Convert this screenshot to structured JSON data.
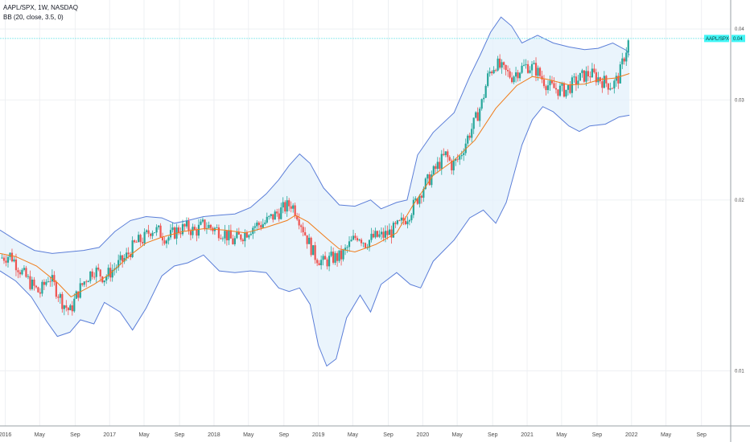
{
  "legend": {
    "symbol_line": "AAPL/SPX, 1W, NASDAQ",
    "indicator_line": "BB (20, close, 3.5, 0)"
  },
  "price_label": {
    "name": "AAPL/SPX",
    "value": "0.04"
  },
  "colors": {
    "band": "#5b7ed8",
    "band_fill": "#e3f0fb",
    "basis": "#f07c1a",
    "up": "#26a69a",
    "down": "#ef5350",
    "grid": "#eef0f3",
    "price_line": "#6fe3e8",
    "price_tag_bg": "#42f5f5",
    "axis_border": "#9aa0a6"
  },
  "chart_data": {
    "type": "line",
    "title": "AAPL/SPX, 1W, NASDAQ",
    "subtitle": "BB (20, close, 3.5, 0)",
    "xlim": [
      2015.95,
      2022.95
    ],
    "ylim": [
      0.008,
      0.045
    ],
    "x_ticks": [
      {
        "label": "2016",
        "t": 2016.0
      },
      {
        "label": "May",
        "t": 2016.33
      },
      {
        "label": "Sep",
        "t": 2016.67
      },
      {
        "label": "2017",
        "t": 2017.0
      },
      {
        "label": "May",
        "t": 2017.33
      },
      {
        "label": "Sep",
        "t": 2017.67
      },
      {
        "label": "2018",
        "t": 2018.0
      },
      {
        "label": "May",
        "t": 2018.33
      },
      {
        "label": "Sep",
        "t": 2018.67
      },
      {
        "label": "2019",
        "t": 2019.0
      },
      {
        "label": "May",
        "t": 2019.33
      },
      {
        "label": "Sep",
        "t": 2019.67
      },
      {
        "label": "2020",
        "t": 2020.0
      },
      {
        "label": "May",
        "t": 2020.33
      },
      {
        "label": "Sep",
        "t": 2020.67
      },
      {
        "label": "2021",
        "t": 2021.0
      },
      {
        "label": "May",
        "t": 2021.33
      },
      {
        "label": "Sep",
        "t": 2021.67
      },
      {
        "label": "2022",
        "t": 2022.0
      },
      {
        "label": "May",
        "t": 2022.33
      },
      {
        "label": "Sep",
        "t": 2022.67
      }
    ],
    "y_ticks": [
      {
        "label": "0.04",
        "v": 0.04
      },
      {
        "label": "0.03",
        "v": 0.03
      },
      {
        "label": "0.02",
        "v": 0.02
      },
      {
        "label": "0.01",
        "v": 0.01
      }
    ],
    "last_price": 0.0385,
    "series": [
      {
        "name": "basis",
        "points": [
          [
            2015.95,
            0.0161
          ],
          [
            2016.1,
            0.0159
          ],
          [
            2016.3,
            0.0153
          ],
          [
            2016.5,
            0.0143
          ],
          [
            2016.63,
            0.0135
          ],
          [
            2016.85,
            0.0142
          ],
          [
            2017.0,
            0.0148
          ],
          [
            2017.2,
            0.016
          ],
          [
            2017.35,
            0.0168
          ],
          [
            2017.5,
            0.0172
          ],
          [
            2017.7,
            0.0176
          ],
          [
            2017.9,
            0.0178
          ],
          [
            2018.1,
            0.0177
          ],
          [
            2018.3,
            0.0175
          ],
          [
            2018.5,
            0.0179
          ],
          [
            2018.7,
            0.0184
          ],
          [
            2018.78,
            0.0188
          ],
          [
            2018.9,
            0.0183
          ],
          [
            2019.1,
            0.017
          ],
          [
            2019.2,
            0.0164
          ],
          [
            2019.35,
            0.0162
          ],
          [
            2019.55,
            0.0167
          ],
          [
            2019.75,
            0.0175
          ],
          [
            2019.9,
            0.0195
          ],
          [
            2020.1,
            0.0221
          ],
          [
            2020.3,
            0.0235
          ],
          [
            2020.5,
            0.0255
          ],
          [
            2020.7,
            0.029
          ],
          [
            2020.9,
            0.0318
          ],
          [
            2021.05,
            0.033
          ],
          [
            2021.2,
            0.0326
          ],
          [
            2021.4,
            0.0319
          ],
          [
            2021.55,
            0.032
          ],
          [
            2021.7,
            0.0326
          ],
          [
            2021.85,
            0.0328
          ],
          [
            2021.98,
            0.0334
          ]
        ]
      },
      {
        "name": "upper",
        "points": [
          [
            2015.95,
            0.0177
          ],
          [
            2016.1,
            0.017
          ],
          [
            2016.28,
            0.0163
          ],
          [
            2016.45,
            0.0161
          ],
          [
            2016.6,
            0.0162
          ],
          [
            2016.75,
            0.0163
          ],
          [
            2016.9,
            0.0165
          ],
          [
            2017.05,
            0.0176
          ],
          [
            2017.2,
            0.0184
          ],
          [
            2017.35,
            0.0187
          ],
          [
            2017.5,
            0.0186
          ],
          [
            2017.62,
            0.0182
          ],
          [
            2017.75,
            0.0184
          ],
          [
            2017.9,
            0.0187
          ],
          [
            2018.05,
            0.0188
          ],
          [
            2018.2,
            0.0189
          ],
          [
            2018.35,
            0.0194
          ],
          [
            2018.5,
            0.0205
          ],
          [
            2018.62,
            0.0217
          ],
          [
            2018.72,
            0.023
          ],
          [
            2018.82,
            0.0241
          ],
          [
            2018.92,
            0.0232
          ],
          [
            2019.05,
            0.021
          ],
          [
            2019.2,
            0.0196
          ],
          [
            2019.35,
            0.0195
          ],
          [
            2019.5,
            0.02
          ],
          [
            2019.6,
            0.0193
          ],
          [
            2019.75,
            0.0198
          ],
          [
            2019.85,
            0.02
          ],
          [
            2019.95,
            0.024
          ],
          [
            2020.1,
            0.0263
          ],
          [
            2020.3,
            0.0285
          ],
          [
            2020.45,
            0.033
          ],
          [
            2020.55,
            0.036
          ],
          [
            2020.65,
            0.0395
          ],
          [
            2020.75,
            0.042
          ],
          [
            2020.85,
            0.0405
          ],
          [
            2020.95,
            0.0378
          ],
          [
            2021.1,
            0.039
          ],
          [
            2021.25,
            0.0378
          ],
          [
            2021.4,
            0.0372
          ],
          [
            2021.55,
            0.0368
          ],
          [
            2021.68,
            0.037
          ],
          [
            2021.82,
            0.0378
          ],
          [
            2021.95,
            0.0367
          ],
          [
            2021.98,
            0.036
          ]
        ]
      },
      {
        "name": "lower",
        "points": [
          [
            2015.95,
            0.015
          ],
          [
            2016.1,
            0.0144
          ],
          [
            2016.25,
            0.0135
          ],
          [
            2016.4,
            0.0122
          ],
          [
            2016.5,
            0.0115
          ],
          [
            2016.62,
            0.0117
          ],
          [
            2016.72,
            0.0123
          ],
          [
            2016.85,
            0.0121
          ],
          [
            2016.95,
            0.0132
          ],
          [
            2017.1,
            0.0127
          ],
          [
            2017.22,
            0.0118
          ],
          [
            2017.35,
            0.0129
          ],
          [
            2017.5,
            0.0147
          ],
          [
            2017.62,
            0.0153
          ],
          [
            2017.75,
            0.0155
          ],
          [
            2017.9,
            0.016
          ],
          [
            2018.05,
            0.015
          ],
          [
            2018.2,
            0.0149
          ],
          [
            2018.35,
            0.015
          ],
          [
            2018.5,
            0.0149
          ],
          [
            2018.62,
            0.014
          ],
          [
            2018.72,
            0.0138
          ],
          [
            2018.82,
            0.014
          ],
          [
            2018.92,
            0.0131
          ],
          [
            2019.0,
            0.0111
          ],
          [
            2019.08,
            0.0102
          ],
          [
            2019.17,
            0.0105
          ],
          [
            2019.27,
            0.0124
          ],
          [
            2019.4,
            0.0136
          ],
          [
            2019.5,
            0.0127
          ],
          [
            2019.6,
            0.0142
          ],
          [
            2019.75,
            0.0149
          ],
          [
            2019.88,
            0.0142
          ],
          [
            2019.98,
            0.014
          ],
          [
            2020.1,
            0.0156
          ],
          [
            2020.3,
            0.017
          ],
          [
            2020.45,
            0.0186
          ],
          [
            2020.58,
            0.0192
          ],
          [
            2020.7,
            0.0182
          ],
          [
            2020.8,
            0.0198
          ],
          [
            2020.95,
            0.025
          ],
          [
            2021.05,
            0.0277
          ],
          [
            2021.15,
            0.0292
          ],
          [
            2021.25,
            0.0286
          ],
          [
            2021.4,
            0.027
          ],
          [
            2021.5,
            0.0264
          ],
          [
            2021.6,
            0.027
          ],
          [
            2021.75,
            0.0272
          ],
          [
            2021.88,
            0.028
          ],
          [
            2021.98,
            0.0282
          ]
        ]
      },
      {
        "name": "price",
        "points": [
          [
            2015.95,
            0.0158
          ],
          [
            2016.05,
            0.016
          ],
          [
            2016.15,
            0.015
          ],
          [
            2016.25,
            0.0142
          ],
          [
            2016.33,
            0.0137
          ],
          [
            2016.42,
            0.0147
          ],
          [
            2016.48,
            0.014
          ],
          [
            2016.55,
            0.0132
          ],
          [
            2016.62,
            0.0127
          ],
          [
            2016.7,
            0.0138
          ],
          [
            2016.78,
            0.0146
          ],
          [
            2016.85,
            0.0151
          ],
          [
            2016.95,
            0.0146
          ],
          [
            2017.05,
            0.0152
          ],
          [
            2017.15,
            0.0158
          ],
          [
            2017.25,
            0.0168
          ],
          [
            2017.33,
            0.0171
          ],
          [
            2017.4,
            0.0178
          ],
          [
            2017.47,
            0.0176
          ],
          [
            2017.55,
            0.0171
          ],
          [
            2017.65,
            0.0177
          ],
          [
            2017.73,
            0.0179
          ],
          [
            2017.82,
            0.0176
          ],
          [
            2017.9,
            0.0181
          ],
          [
            2018.0,
            0.0178
          ],
          [
            2018.1,
            0.0175
          ],
          [
            2018.18,
            0.0169
          ],
          [
            2018.28,
            0.0174
          ],
          [
            2018.38,
            0.018
          ],
          [
            2018.48,
            0.0182
          ],
          [
            2018.58,
            0.0188
          ],
          [
            2018.68,
            0.0194
          ],
          [
            2018.74,
            0.0197
          ],
          [
            2018.8,
            0.0189
          ],
          [
            2018.88,
            0.0173
          ],
          [
            2018.96,
            0.016
          ],
          [
            2019.05,
            0.0155
          ],
          [
            2019.13,
            0.0158
          ],
          [
            2019.22,
            0.0159
          ],
          [
            2019.3,
            0.0167
          ],
          [
            2019.38,
            0.0174
          ],
          [
            2019.45,
            0.0168
          ],
          [
            2019.53,
            0.0172
          ],
          [
            2019.62,
            0.0173
          ],
          [
            2019.7,
            0.0176
          ],
          [
            2019.78,
            0.0181
          ],
          [
            2019.86,
            0.0188
          ],
          [
            2019.93,
            0.0198
          ],
          [
            2020.0,
            0.021
          ],
          [
            2020.08,
            0.022
          ],
          [
            2020.15,
            0.0231
          ],
          [
            2020.22,
            0.024
          ],
          [
            2020.28,
            0.023
          ],
          [
            2020.35,
            0.0237
          ],
          [
            2020.42,
            0.0255
          ],
          [
            2020.5,
            0.0275
          ],
          [
            2020.57,
            0.0298
          ],
          [
            2020.63,
            0.0333
          ],
          [
            2020.7,
            0.0348
          ],
          [
            2020.77,
            0.0338
          ],
          [
            2020.85,
            0.033
          ],
          [
            2020.93,
            0.034
          ],
          [
            2021.0,
            0.0345
          ],
          [
            2021.08,
            0.034
          ],
          [
            2021.15,
            0.0326
          ],
          [
            2021.22,
            0.0316
          ],
          [
            2021.3,
            0.0313
          ],
          [
            2021.37,
            0.0312
          ],
          [
            2021.45,
            0.0322
          ],
          [
            2021.53,
            0.033
          ],
          [
            2021.6,
            0.0334
          ],
          [
            2021.68,
            0.0328
          ],
          [
            2021.75,
            0.0322
          ],
          [
            2021.82,
            0.0318
          ],
          [
            2021.88,
            0.033
          ],
          [
            2021.93,
            0.0358
          ],
          [
            2021.98,
            0.0385
          ]
        ]
      }
    ]
  }
}
